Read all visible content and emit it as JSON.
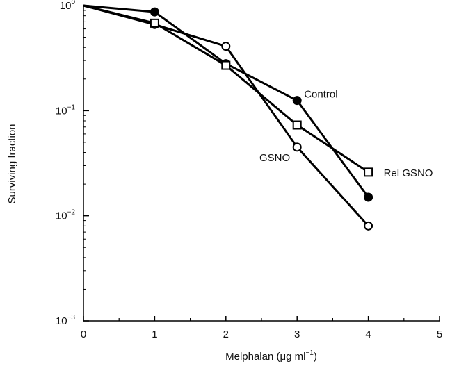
{
  "chart_data": {
    "type": "line",
    "xlabel": "Melphalan (μg ml",
    "xlabel_sup": "−1",
    "xlabel_end": ")",
    "ylabel": "Surviving fraction",
    "xlim": [
      0,
      5
    ],
    "ylim": [
      0.001,
      1
    ],
    "yscale": "log",
    "x_ticks": [
      "0",
      "1",
      "2",
      "3",
      "4",
      "5"
    ],
    "y_ticks": [
      {
        "value": 1,
        "base": "10",
        "exp": "0"
      },
      {
        "value": 0.1,
        "base": "10",
        "exp": "−1"
      },
      {
        "value": 0.01,
        "base": "10",
        "exp": "−2"
      },
      {
        "value": 0.001,
        "base": "10",
        "exp": "−3"
      }
    ],
    "grid": false,
    "series": [
      {
        "name": "Control",
        "marker": "filled-circle",
        "x": [
          0,
          1,
          2,
          3,
          4
        ],
        "y": [
          1.0,
          0.87,
          0.28,
          0.125,
          0.015
        ]
      },
      {
        "name": "GSNO",
        "marker": "open-circle",
        "x": [
          0,
          1,
          2,
          3,
          4
        ],
        "y": [
          1.0,
          0.66,
          0.41,
          0.045,
          0.008
        ]
      },
      {
        "name": "Rel GSNO",
        "marker": "open-square",
        "x": [
          0,
          1,
          2,
          3,
          4
        ],
        "y": [
          1.0,
          0.68,
          0.27,
          0.073,
          0.026
        ]
      }
    ]
  }
}
